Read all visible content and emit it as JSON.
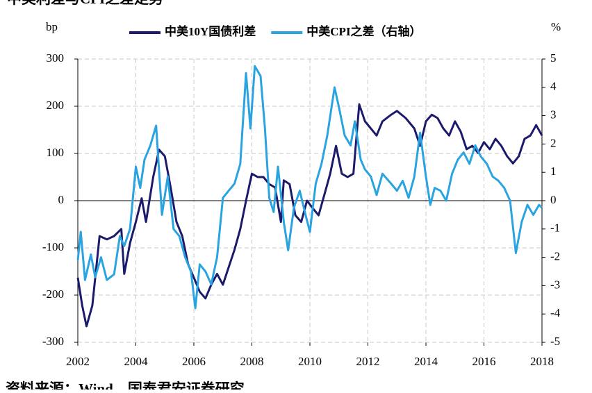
{
  "chart_data": {
    "type": "line",
    "title": "中美利差与CPI之差走势",
    "source": "资料来源：Wind，国泰君安证券研究",
    "y_label": "bp",
    "y2_label": "%",
    "xlim": [
      2002,
      2018
    ],
    "xticks": [
      2002,
      2004,
      2006,
      2008,
      2010,
      2012,
      2014,
      2016,
      2018
    ],
    "ylim": [
      -300,
      300
    ],
    "yticks": [
      -300,
      -200,
      -100,
      0,
      100,
      200,
      300
    ],
    "y2lim": [
      -5,
      5
    ],
    "y2ticks": [
      -5,
      -4,
      -3,
      -2,
      -1,
      0,
      1,
      2,
      3,
      4,
      5
    ],
    "grid": true,
    "series": [
      {
        "name": "中美10Y国债利差",
        "color": "#1c1a6b",
        "x": [
          2002.0,
          2002.15,
          2002.3,
          2002.5,
          2002.75,
          2003.0,
          2003.25,
          2003.5,
          2003.6,
          2003.8,
          2004.0,
          2004.2,
          2004.35,
          2004.6,
          2004.8,
          2005.0,
          2005.2,
          2005.4,
          2005.6,
          2005.8,
          2006.0,
          2006.2,
          2006.4,
          2006.6,
          2006.8,
          2007.0,
          2007.2,
          2007.4,
          2007.6,
          2007.8,
          2008.0,
          2008.2,
          2008.4,
          2008.6,
          2008.8,
          2009.0,
          2009.1,
          2009.3,
          2009.5,
          2009.7,
          2009.9,
          2010.1,
          2010.3,
          2010.5,
          2010.7,
          2010.9,
          2011.1,
          2011.3,
          2011.5,
          2011.7,
          2011.9,
          2012.1,
          2012.3,
          2012.5,
          2012.8,
          2013.0,
          2013.3,
          2013.6,
          2013.8,
          2014.0,
          2014.2,
          2014.4,
          2014.6,
          2014.8,
          2015.0,
          2015.2,
          2015.4,
          2015.6,
          2015.8,
          2016.0,
          2016.2,
          2016.4,
          2016.6,
          2016.8,
          2017.0,
          2017.2,
          2017.4,
          2017.6,
          2017.8,
          2018.0
        ],
        "values": [
          -163,
          -222,
          -266,
          -222,
          -75,
          -82,
          -75,
          -60,
          -155,
          -90,
          -45,
          5,
          -45,
          50,
          108,
          94,
          28,
          -45,
          -75,
          -134,
          -163,
          -193,
          -207,
          -178,
          -155,
          -178,
          -141,
          -104,
          -60,
          0,
          57,
          50,
          50,
          35,
          28,
          -45,
          43,
          35,
          -31,
          -45,
          0,
          -16,
          -31,
          13,
          57,
          116,
          57,
          50,
          57,
          204,
          168,
          153,
          138,
          168,
          182,
          190,
          175,
          153,
          116,
          168,
          182,
          175,
          153,
          138,
          168,
          146,
          109,
          116,
          101,
          124,
          109,
          131,
          116,
          94,
          79,
          94,
          131,
          138,
          160,
          138
        ]
      },
      {
        "name": "中美CPI之差（右轴）",
        "color": "#2aa4e0",
        "axis": "y2",
        "x": [
          2002.0,
          2002.1,
          2002.25,
          2002.45,
          2002.6,
          2002.8,
          2003.0,
          2003.25,
          2003.45,
          2003.6,
          2003.8,
          2004.0,
          2004.15,
          2004.3,
          2004.5,
          2004.7,
          2004.9,
          2005.1,
          2005.3,
          2005.5,
          2005.7,
          2005.9,
          2006.05,
          2006.2,
          2006.4,
          2006.6,
          2006.8,
          2007.0,
          2007.2,
          2007.4,
          2007.6,
          2007.8,
          2007.95,
          2008.1,
          2008.3,
          2008.45,
          2008.6,
          2008.75,
          2008.9,
          2009.1,
          2009.25,
          2009.45,
          2009.65,
          2009.85,
          2010.0,
          2010.2,
          2010.4,
          2010.6,
          2010.85,
          2011.0,
          2011.2,
          2011.4,
          2011.55,
          2011.75,
          2011.9,
          2012.1,
          2012.3,
          2012.5,
          2012.8,
          2013.0,
          2013.2,
          2013.4,
          2013.6,
          2013.8,
          2014.0,
          2014.15,
          2014.3,
          2014.5,
          2014.7,
          2014.9,
          2015.1,
          2015.3,
          2015.5,
          2015.7,
          2015.9,
          2016.1,
          2016.3,
          2016.5,
          2016.7,
          2016.9,
          2017.1,
          2017.3,
          2017.5,
          2017.7,
          2017.9,
          2018.0
        ],
        "values": [
          -2.1,
          -1.1,
          -2.8,
          -1.9,
          -2.7,
          -2.0,
          -2.8,
          -2.6,
          -1.25,
          -1.6,
          -1.0,
          1.2,
          0.45,
          1.45,
          1.95,
          2.65,
          -0.5,
          0.85,
          -1.0,
          -1.25,
          -2.0,
          -2.5,
          -3.8,
          -2.25,
          -2.5,
          -2.95,
          -2.0,
          0.1,
          0.35,
          0.6,
          1.3,
          4.5,
          2.55,
          4.75,
          4.4,
          2.55,
          0.1,
          -0.4,
          1.2,
          -0.75,
          -1.75,
          -0.25,
          0.35,
          -0.5,
          -1.1,
          0.6,
          1.3,
          2.3,
          4.0,
          3.3,
          2.3,
          1.95,
          2.8,
          1.45,
          1.1,
          0.85,
          0.2,
          0.95,
          0.6,
          0.35,
          0.7,
          0.1,
          0.85,
          2.4,
          0.85,
          -0.15,
          0.45,
          0.35,
          0.0,
          0.95,
          1.45,
          1.7,
          1.3,
          1.95,
          1.55,
          1.3,
          0.85,
          0.7,
          0.45,
          0.0,
          -1.85,
          -0.75,
          -0.15,
          -0.5,
          -0.15,
          -0.25
        ]
      }
    ]
  }
}
